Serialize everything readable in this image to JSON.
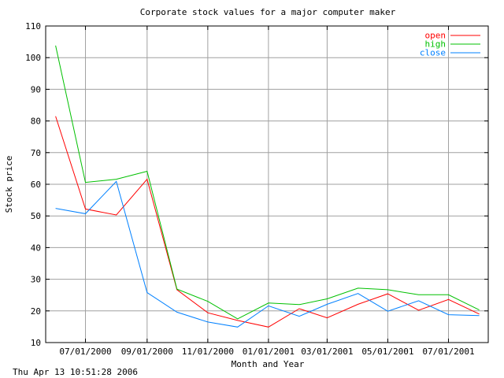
{
  "chart_data": {
    "type": "line",
    "title": "Corporate stock values for a major computer maker",
    "xlabel": "Month and Year",
    "ylabel": "Stock price",
    "ylim": [
      10,
      110
    ],
    "xlim": [
      "2000-05-22",
      "2001-08-10"
    ],
    "yticks": [
      10,
      20,
      30,
      40,
      50,
      60,
      70,
      80,
      90,
      100,
      110
    ],
    "xticks": [
      {
        "date": "2000-07-01",
        "label": "07/01/2000"
      },
      {
        "date": "2000-09-01",
        "label": "09/01/2000"
      },
      {
        "date": "2000-11-01",
        "label": "11/01/2000"
      },
      {
        "date": "2001-01-01",
        "label": "01/01/2001"
      },
      {
        "date": "2001-03-01",
        "label": "03/01/2001"
      },
      {
        "date": "2001-05-01",
        "label": "05/01/2001"
      },
      {
        "date": "2001-07-01",
        "label": "07/01/2001"
      }
    ],
    "grid": true,
    "legend_position": "top-right",
    "x": [
      "2000-06-01",
      "2000-07-01",
      "2000-08-01",
      "2000-09-01",
      "2000-10-01",
      "2000-11-01",
      "2000-12-01",
      "2001-01-01",
      "2001-02-01",
      "2001-03-01",
      "2001-04-01",
      "2001-05-01",
      "2001-06-01",
      "2001-07-01",
      "2001-08-01"
    ],
    "series": [
      {
        "name": "open",
        "color": "#ff0000",
        "values": [
          81.5,
          52.2,
          50.3,
          61.6,
          26.7,
          19.4,
          17.0,
          14.9,
          20.7,
          17.8,
          22.1,
          25.4,
          20.2,
          23.6,
          19.0
        ]
      },
      {
        "name": "high",
        "color": "#00c000",
        "values": [
          103.8,
          60.6,
          61.6,
          64.1,
          26.9,
          23.0,
          17.5,
          22.5,
          22.0,
          23.8,
          27.2,
          26.7,
          25.1,
          25.1,
          20.3
        ]
      },
      {
        "name": "close",
        "color": "#0080ff",
        "values": [
          52.4,
          50.7,
          60.9,
          25.8,
          19.6,
          16.5,
          14.9,
          21.6,
          18.3,
          22.1,
          25.5,
          19.9,
          23.2,
          18.8,
          18.5
        ]
      }
    ]
  },
  "footer": {
    "timestamp": "Thu Apr 13 10:51:28 2006"
  }
}
